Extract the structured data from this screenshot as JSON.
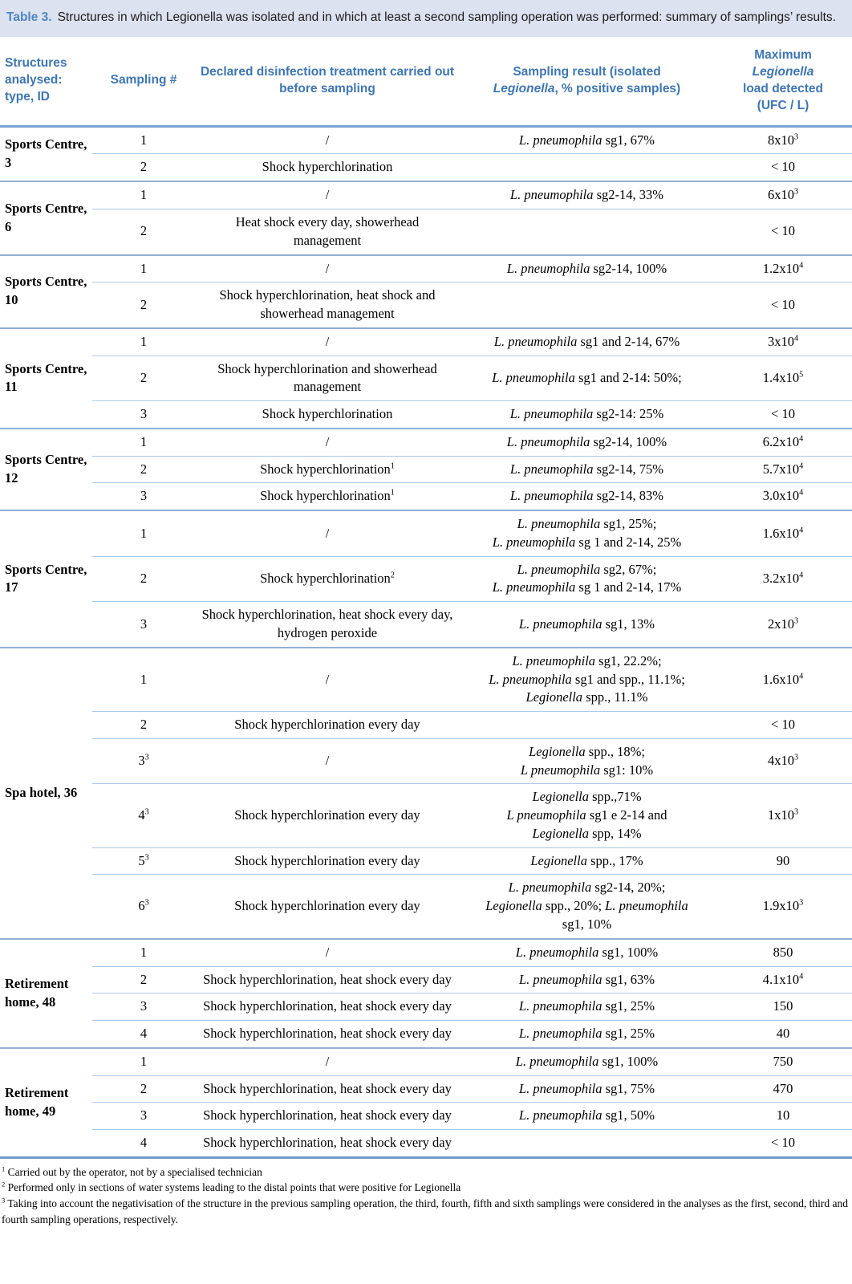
{
  "title": {
    "label": "Table 3.",
    "text": "Structures in which Legionella was isolated and in which at least a second sampling operation was performed: summary of samplings’ results."
  },
  "columns": [
    {
      "label": "Structures analysed: type, ID"
    },
    {
      "label": "Sampling #"
    },
    {
      "label": "Declared disinfection treatment carried out before sampling"
    },
    {
      "label": "Sampling result (isolated\n*Legionella*, % positive samples)"
    },
    {
      "label": "Maximum\n*Legionella*\nload detected\n(UFC / L)"
    }
  ],
  "colors": {
    "title_bar_bg": "#dde2f0",
    "title_label": "#4e86c4",
    "header_text": "#3e76b4",
    "header_rule": "#7aa3d6",
    "row_rule": "#aac9e9",
    "group_rule": "#92afd2",
    "outer_rule": "#6f9ccf"
  },
  "groups": [
    {
      "structure": "Sports Centre, 3",
      "rows": [
        {
          "n": "1",
          "treatment": "/",
          "result": "*L. pneumophila* sg1, 67%",
          "load": "8x10^3"
        },
        {
          "n": "2",
          "treatment": "Shock hyperchlorination",
          "result": "",
          "load": "< 10"
        }
      ]
    },
    {
      "structure": "Sports Centre, 6",
      "rows": [
        {
          "n": "1",
          "treatment": "/",
          "result": "*L. pneumophila* sg2-14, 33%",
          "load": "6x10^3"
        },
        {
          "n": "2",
          "treatment": "Heat shock every day, showerhead management",
          "result": "",
          "load": "< 10"
        }
      ]
    },
    {
      "structure": "Sports Centre, 10",
      "rows": [
        {
          "n": "1",
          "treatment": "/",
          "result": "*L. pneumophila* sg2-14, 100%",
          "load": "1.2x10^4"
        },
        {
          "n": "2",
          "treatment": "Shock hyperchlorination, heat shock and showerhead management",
          "result": "",
          "load": "< 10"
        }
      ]
    },
    {
      "structure": "Sports Centre, 11",
      "rows": [
        {
          "n": "1",
          "treatment": "/",
          "result": "*L. pneumophila* sg1 and 2-14, 67%",
          "load": "3x10^4"
        },
        {
          "n": "2",
          "treatment": "Shock hyperchlorination and showerhead management",
          "result": "*L. pneumophila* sg1 and 2-14: 50%;",
          "load": "1.4x10^5"
        },
        {
          "n": "3",
          "treatment": "Shock hyperchlorination",
          "result": "*L. pneumophila* sg2-14: 25%",
          "load": "< 10"
        }
      ]
    },
    {
      "structure": "Sports Centre, 12",
      "rows": [
        {
          "n": "1",
          "treatment": "/",
          "result": "*L. pneumophila* sg2-14, 100%",
          "load": "6.2x10^4"
        },
        {
          "n": "2",
          "treatment": "Shock hyperchlorination^1",
          "result": "*L. pneumophila* sg2-14, 75%",
          "load": "5.7x10^4"
        },
        {
          "n": "3",
          "treatment": "Shock hyperchlorination^1",
          "result": "*L. pneumophila* sg2-14, 83%",
          "load": "3.0x10^4"
        }
      ]
    },
    {
      "structure": "Sports Centre, 17",
      "rows": [
        {
          "n": "1",
          "treatment": "/",
          "result": "*L. pneumophila* sg1, 25%;\n*L. pneumophila* sg 1 and 2-14, 25%",
          "load": "1.6x10^4"
        },
        {
          "n": "2",
          "treatment": "Shock hyperchlorination^2",
          "result": "*L. pneumophila* sg2, 67%;\n*L. pneumophila* sg 1 and 2-14, 17%",
          "load": "3.2x10^4"
        },
        {
          "n": "3",
          "treatment": "Shock hyperchlorination, heat shock every day, hydrogen peroxide",
          "result": "*L. pneumophila* sg1, 13%",
          "load": "2x10^3"
        }
      ]
    },
    {
      "structure": "Spa hotel, 36",
      "rows": [
        {
          "n": "1",
          "treatment": "/",
          "result": "*L. pneumophila* sg1, 22.2%;\n*L. pneumophila* sg1 and spp., 11.1%;\n*Legionella* spp., 11.1%",
          "load": "1.6x10^4"
        },
        {
          "n": "2",
          "treatment": "Shock hyperchlorination every day",
          "result": "",
          "load": "< 10"
        },
        {
          "n": "3^3",
          "treatment": "/",
          "result": "*Legionella* spp., 18%;\n*L pneumophila* sg1: 10%",
          "load": "4x10^3"
        },
        {
          "n": "4^3",
          "treatment": "Shock hyperchlorination every day",
          "result": "*Legionella* spp.,71%\n*L pneumophila* sg1 e 2-14 and\n*Legionella* spp, 14%",
          "load": "1x10^3"
        },
        {
          "n": "5^3",
          "treatment": "Shock hyperchlorination every day",
          "result": "*Legionella* spp., 17%",
          "load": "90"
        },
        {
          "n": "6^3",
          "treatment": "Shock hyperchlorination every day",
          "result": "*L. pneumophila* sg2-14, 20%;\n*Legionella* spp., 20%; *L. pneumophila*\nsg1, 10%",
          "load": "1.9x10^3"
        }
      ]
    },
    {
      "structure": "Retirement home, 48",
      "rows": [
        {
          "n": "1",
          "treatment": "/",
          "result": "*L. pneumophila* sg1, 100%",
          "load": "850"
        },
        {
          "n": "2",
          "treatment": "Shock hyperchlorination, heat shock every day",
          "result": "*L. pneumophila* sg1, 63%",
          "load": "4.1x10^4"
        },
        {
          "n": "3",
          "treatment": "Shock hyperchlorination, heat shock every day",
          "result": "*L. pneumophila* sg1, 25%",
          "load": "150"
        },
        {
          "n": "4",
          "treatment": "Shock hyperchlorination, heat shock every day",
          "result": "*L. pneumophila* sg1, 25%",
          "load": "40"
        }
      ]
    },
    {
      "structure": "Retirement home, 49",
      "rows": [
        {
          "n": "1",
          "treatment": "/",
          "result": "*L. pneumophila* sg1, 100%",
          "load": "750"
        },
        {
          "n": "2",
          "treatment": "Shock hyperchlorination, heat shock every day",
          "result": "*L. pneumophila* sg1, 75%",
          "load": "470"
        },
        {
          "n": "3",
          "treatment": "Shock hyperchlorination, heat shock every day",
          "result": "*L. pneumophila* sg1, 50%",
          "load": "10"
        },
        {
          "n": "4",
          "treatment": "Shock hyperchlorination, heat shock every day",
          "result": "",
          "load": "< 10"
        }
      ]
    }
  ],
  "footnotes": [
    {
      "marker": "1",
      "text": "Carried out by the operator, not by a specialised technician"
    },
    {
      "marker": "2",
      "text": "Performed only in sections of water systems leading to the distal points that were positive for Legionella"
    },
    {
      "marker": "3",
      "text": "Taking into account the negativisation of the structure in the previous sampling operation, the third, fourth, fifth and sixth samplings were considered in the analyses as the first, second, third and fourth sampling operations, respectively."
    }
  ]
}
